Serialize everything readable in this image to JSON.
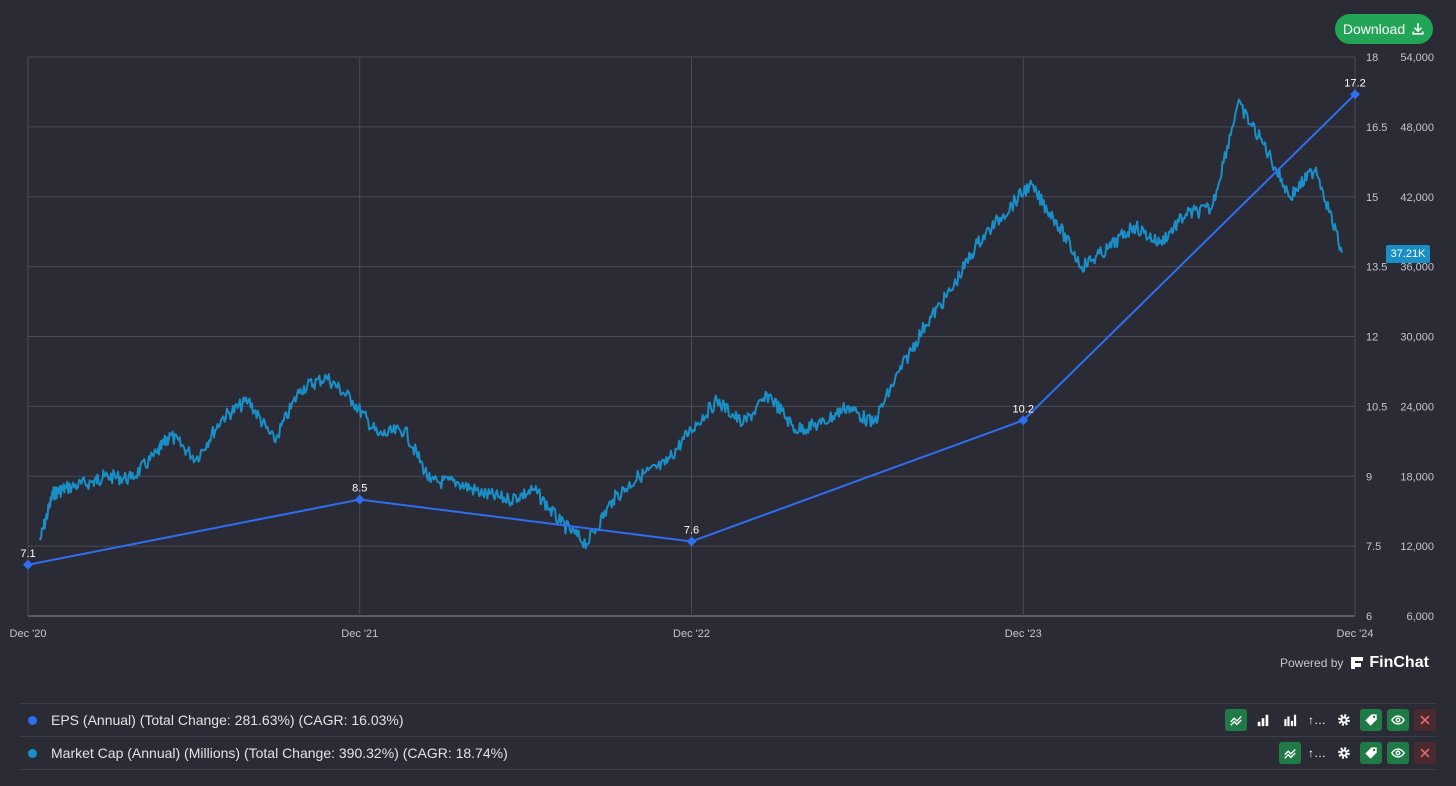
{
  "download": {
    "label": "Download",
    "icon": "download-icon"
  },
  "powered_by": {
    "text": "Powered by",
    "brand": "FinChat"
  },
  "last_value_badge": "37.21K",
  "legend": [
    {
      "text": "EPS (Annual) (Total Change: 281.63%) (CAGR: 16.03%)",
      "color": "#2f6ef0",
      "actions": [
        "line-chart-icon",
        "bar-chart-icon",
        "grouped-bar-icon",
        "more-icon",
        "gear-icon",
        "tag-icon",
        "eye-icon",
        "close-icon"
      ]
    },
    {
      "text": "Market Cap (Annual) (Millions) (Total Change: 390.32%) (CAGR: 18.74%)",
      "color": "#1a8fc7",
      "actions": [
        "line-chart-icon",
        "more-icon",
        "gear-icon",
        "tag-icon",
        "eye-icon",
        "close-icon"
      ]
    }
  ],
  "chart_data": {
    "type": "line",
    "grid": true,
    "x_labels": [
      "Dec '20",
      "Dec '21",
      "Dec '22",
      "Dec '23",
      "Dec '24"
    ],
    "y_left_label_ticks": [
      "18",
      "16.5",
      "15",
      "13.5",
      "12",
      "10.5",
      "9",
      "7.5",
      "6"
    ],
    "y_right_label_ticks": [
      "54,000",
      "48,000",
      "42,000",
      "36,000",
      "30,000",
      "24,000",
      "18,000",
      "12,000",
      "6,000"
    ],
    "y_left_range": [
      6,
      18
    ],
    "y_right_range": [
      6000,
      54000
    ],
    "series": [
      {
        "name": "EPS (Annual)",
        "color": "#2f6ef0",
        "axis": "left",
        "x": [
          "Dec '20",
          "Dec '21",
          "Dec '22",
          "Dec '23",
          "Dec '24"
        ],
        "values": [
          7.1,
          8.5,
          7.6,
          10.2,
          17.2
        ],
        "point_labels": [
          "7.1",
          "8.5",
          "7.6",
          "10.2",
          "17.2"
        ]
      },
      {
        "name": "Market Cap (Annual) (Millions)",
        "color": "#1a8fc7",
        "axis": "right",
        "x_fraction_of_period": [
          0.0,
          0.01,
          0.02,
          0.04,
          0.05,
          0.07,
          0.09,
          0.1,
          0.12,
          0.14,
          0.16,
          0.18,
          0.2,
          0.22,
          0.24,
          0.26,
          0.28,
          0.3,
          0.32,
          0.34,
          0.36,
          0.38,
          0.4,
          0.42,
          0.44,
          0.46,
          0.48,
          0.5,
          0.52,
          0.54,
          0.56,
          0.58,
          0.6,
          0.62,
          0.64,
          0.66,
          0.68,
          0.7,
          0.72,
          0.74,
          0.76,
          0.78,
          0.8,
          0.82,
          0.84,
          0.86,
          0.88,
          0.9,
          0.92,
          0.94,
          0.96,
          0.98,
          1.0
        ],
        "values": [
          12500,
          16500,
          17000,
          17500,
          18000,
          17800,
          20000,
          21500,
          19500,
          23000,
          24500,
          21000,
          25500,
          26500,
          24500,
          21500,
          22000,
          17500,
          17500,
          16500,
          16000,
          16800,
          14000,
          12200,
          16000,
          18000,
          19000,
          22000,
          24500,
          22500,
          25000,
          22000,
          22500,
          24000,
          22500,
          27000,
          31000,
          34000,
          38000,
          40500,
          43000,
          40000,
          36000,
          37500,
          39500,
          38000,
          40500,
          41000,
          50000,
          46500,
          42000,
          44500,
          37200
        ]
      }
    ]
  }
}
